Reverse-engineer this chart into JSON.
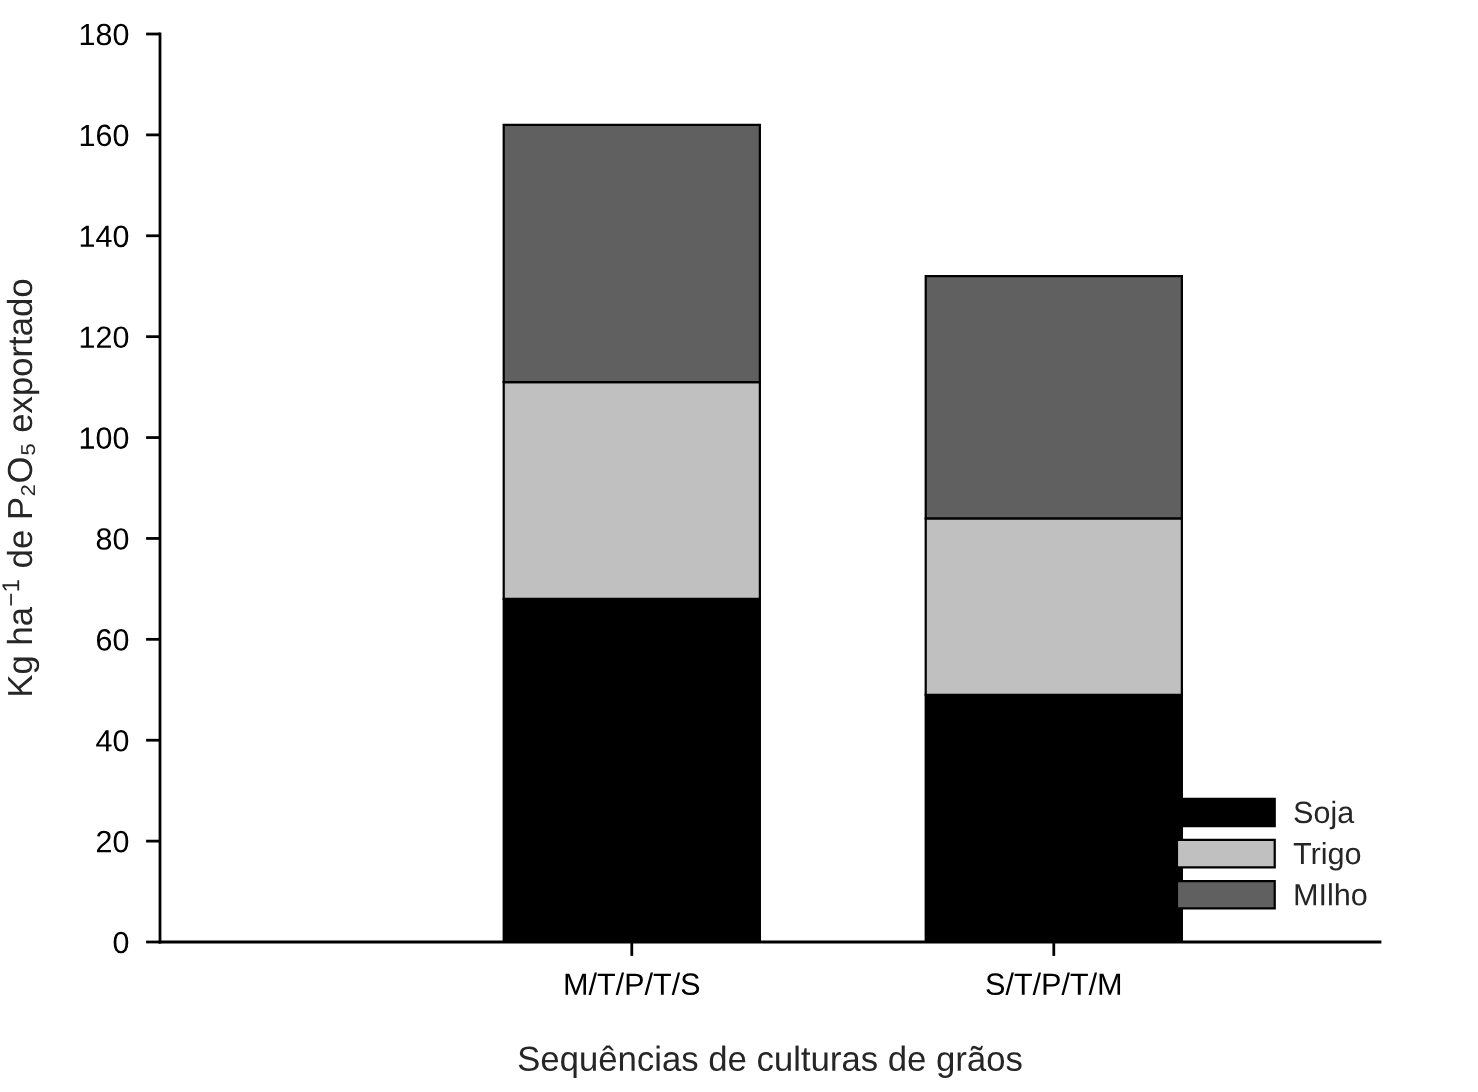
{
  "chart_data": {
    "type": "bar",
    "stacked": true,
    "xlabel": "Sequências de culturas de grãos",
    "ylabel": "Kg ha$^{−1}$ de P₂O₅ exportado",
    "categories": [
      "M/T/P/T/S",
      "S/T/P/T/M"
    ],
    "series": [
      {
        "name": "Soja",
        "color": "#000000",
        "values": [
          68,
          49
        ]
      },
      {
        "name": "Trigo",
        "color": "#c0c0c0",
        "values": [
          43,
          35
        ]
      },
      {
        "name": "MIlho",
        "color": "#606060",
        "values": [
          51,
          48
        ]
      }
    ],
    "ylim": [
      0,
      180
    ],
    "yticks": [
      0,
      20,
      40,
      60,
      80,
      100,
      120,
      140,
      160,
      180
    ],
    "grid": false,
    "legend": "bottom right"
  }
}
